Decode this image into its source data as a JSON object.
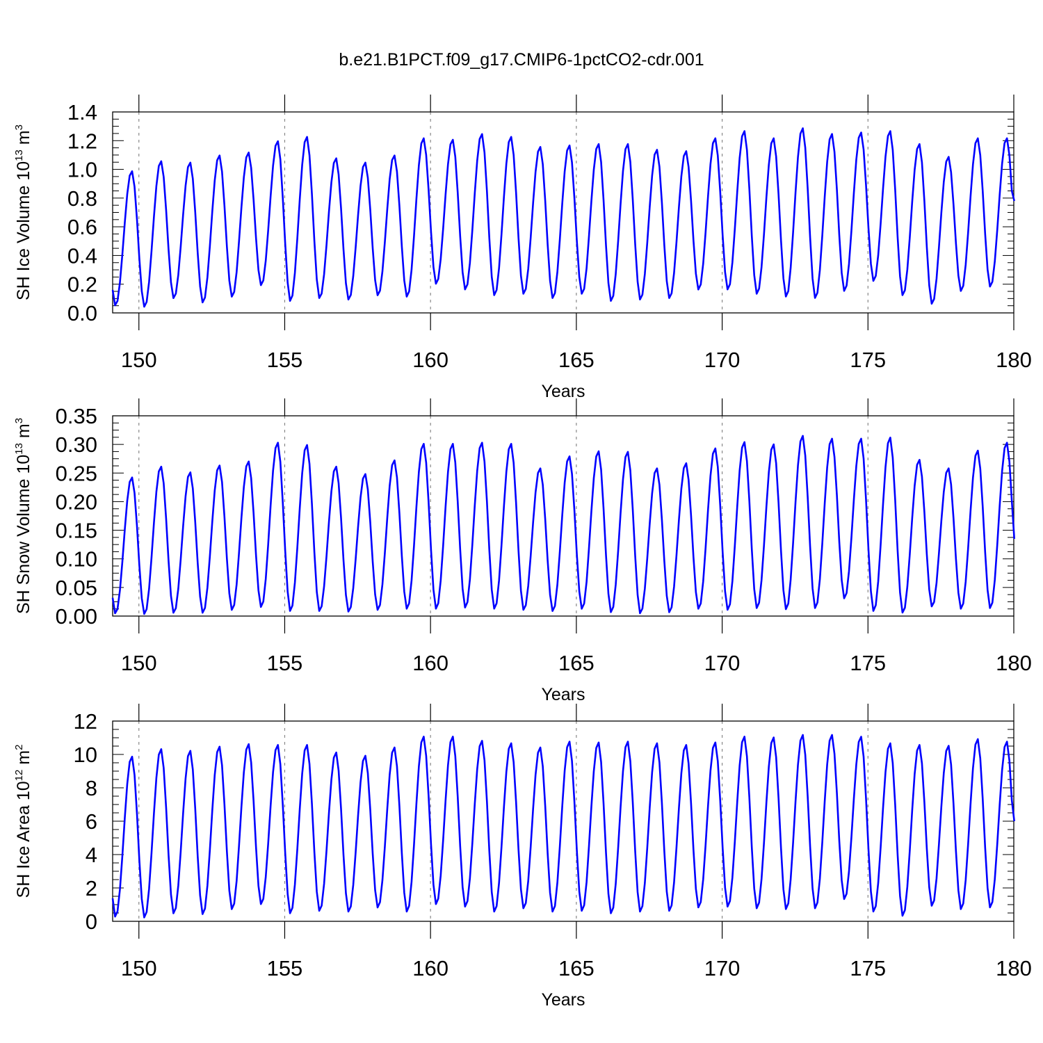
{
  "figure_title": "b.e21.B1PCT.f09_g17.CMIP6-1pctCO2-cdr.001",
  "series_color": "#0000ff",
  "chart_data": [
    {
      "type": "line",
      "ylabel_main": "SH Ice Volume 10",
      "ylabel_sup": "13",
      "ylabel_unit": "m",
      "ylabel_unit_sup": "3",
      "xlabel": "Years",
      "xlim": [
        149.1,
        180
      ],
      "ylim": [
        0,
        1.4
      ],
      "y_ticks": [
        0,
        0.2,
        0.4,
        0.6,
        0.8,
        1.0,
        1.2,
        1.4
      ],
      "y_tick_labels": [
        "0.0",
        "0.2",
        "0.4",
        "0.6",
        "0.8",
        "1.0",
        "1.2",
        "1.4"
      ],
      "y_minor_step": 0.05,
      "x_ticks": [
        150,
        155,
        160,
        165,
        170,
        175,
        180
      ],
      "x_tick_labels": [
        "150",
        "155",
        "160",
        "165",
        "170",
        "175",
        "180"
      ],
      "grid": "dashed vertical at major x ticks",
      "seasonal_cycle": {
        "start": 149.1,
        "first_year_min": 0.05,
        "first_year_max": 0.99,
        "annual_min": [
          0.04,
          0.1,
          0.07,
          0.11,
          0.19,
          0.08,
          0.1,
          0.09,
          0.12,
          0.11,
          0.2,
          0.16,
          0.12,
          0.13,
          0.1,
          0.13,
          0.08,
          0.09,
          0.1,
          0.16,
          0.16,
          0.13,
          0.11,
          0.1,
          0.15,
          0.22,
          0.12,
          0.06,
          0.15,
          0.18
        ],
        "annual_max": [
          1.06,
          1.05,
          1.1,
          1.12,
          1.2,
          1.23,
          1.08,
          1.05,
          1.1,
          1.22,
          1.21,
          1.25,
          1.23,
          1.16,
          1.17,
          1.18,
          1.18,
          1.14,
          1.13,
          1.22,
          1.27,
          1.22,
          1.29,
          1.25,
          1.26,
          1.27,
          1.18,
          1.09,
          1.22,
          1.22
        ],
        "end_value": 0.78
      }
    },
    {
      "type": "line",
      "ylabel_main": "SH Snow Volume 10",
      "ylabel_sup": "13",
      "ylabel_unit": "m",
      "ylabel_unit_sup": "3",
      "xlabel": "Years",
      "xlim": [
        149.1,
        180
      ],
      "ylim": [
        0,
        0.35
      ],
      "y_ticks": [
        0,
        0.05,
        0.1,
        0.15,
        0.2,
        0.25,
        0.3,
        0.35
      ],
      "y_tick_labels": [
        "0.00",
        "0.05",
        "0.10",
        "0.15",
        "0.20",
        "0.25",
        "0.30",
        "0.35"
      ],
      "y_minor_step": 0.0125,
      "x_ticks": [
        150,
        155,
        160,
        165,
        170,
        175,
        180
      ],
      "x_tick_labels": [
        "150",
        "155",
        "160",
        "165",
        "170",
        "175",
        "180"
      ],
      "grid": "dashed vertical at major x ticks",
      "seasonal_cycle": {
        "start": 149.1,
        "first_year_min": 0.004,
        "first_year_max": 0.243,
        "annual_min": [
          0.003,
          0.005,
          0.005,
          0.01,
          0.015,
          0.008,
          0.008,
          0.007,
          0.01,
          0.012,
          0.012,
          0.014,
          0.012,
          0.01,
          0.008,
          0.012,
          0.006,
          0.004,
          0.006,
          0.012,
          0.01,
          0.013,
          0.011,
          0.013,
          0.03,
          0.008,
          0.005,
          0.016,
          0.012,
          0.013
        ],
        "annual_max": [
          0.262,
          0.252,
          0.264,
          0.271,
          0.304,
          0.3,
          0.262,
          0.249,
          0.273,
          0.302,
          0.302,
          0.304,
          0.302,
          0.259,
          0.28,
          0.289,
          0.288,
          0.259,
          0.268,
          0.294,
          0.305,
          0.301,
          0.316,
          0.311,
          0.311,
          0.313,
          0.274,
          0.259,
          0.29,
          0.304
        ],
        "end_value": 0.135
      }
    },
    {
      "type": "line",
      "ylabel_main": "SH Ice Area 10",
      "ylabel_sup": "12",
      "ylabel_unit": "m",
      "ylabel_unit_sup": "2",
      "xlabel": "Years",
      "xlim": [
        149.1,
        180
      ],
      "ylim": [
        0,
        12
      ],
      "y_ticks": [
        0,
        2,
        4,
        6,
        8,
        10,
        12
      ],
      "y_tick_labels": [
        "0",
        "2",
        "4",
        "6",
        "8",
        "10",
        "12"
      ],
      "y_minor_step": 0.5,
      "x_ticks": [
        150,
        155,
        160,
        165,
        170,
        175,
        180
      ],
      "x_tick_labels": [
        "150",
        "155",
        "160",
        "165",
        "170",
        "175",
        "180"
      ],
      "grid": "dashed vertical at major x ticks",
      "seasonal_cycle": {
        "start": 149.1,
        "first_year_min": 0.25,
        "first_year_max": 9.9,
        "annual_min": [
          0.2,
          0.45,
          0.4,
          0.7,
          1.0,
          0.45,
          0.6,
          0.55,
          0.8,
          0.55,
          1.0,
          0.85,
          0.55,
          0.75,
          0.55,
          0.6,
          0.45,
          0.55,
          0.6,
          0.8,
          0.85,
          0.75,
          0.7,
          0.75,
          1.3,
          0.55,
          0.3,
          0.9,
          0.7,
          0.8
        ],
        "annual_max": [
          10.35,
          10.25,
          10.5,
          10.65,
          10.6,
          10.6,
          10.15,
          9.95,
          10.45,
          11.1,
          11.1,
          10.85,
          10.7,
          10.45,
          10.8,
          10.75,
          10.8,
          10.7,
          10.6,
          10.75,
          11.1,
          11.05,
          11.2,
          11.2,
          11.1,
          10.7,
          10.6,
          10.55,
          10.95,
          10.8
        ],
        "end_value": 6.0
      }
    }
  ]
}
